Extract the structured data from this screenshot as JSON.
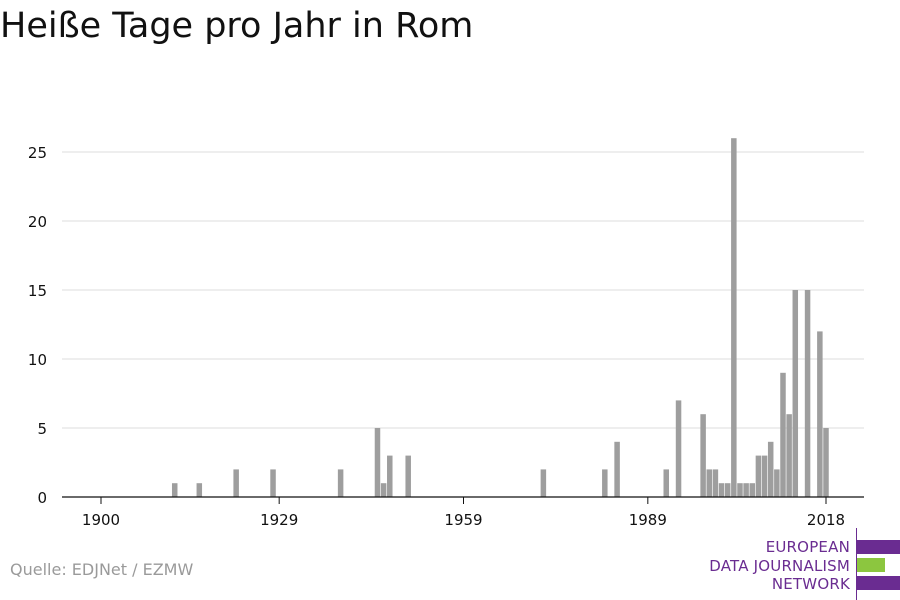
{
  "title": "Heiße Tage pro Jahr in Rom",
  "source": "Quelle: EDJNet / EZMW",
  "logo": {
    "lines": [
      "EUROPEAN",
      "DATA JOURNALISM",
      "NETWORK"
    ],
    "colors": {
      "purple": "#6a2c91",
      "green": "#8cc63f"
    }
  },
  "colors": {
    "bar": "#9e9e9e",
    "grid": "#dddddd",
    "axis": "#111111",
    "text": "#111111"
  },
  "chart_data": {
    "type": "bar",
    "title": "Heiße Tage pro Jahr in Rom",
    "xlabel": "",
    "ylabel": "",
    "xlim": [
      1899,
      2019
    ],
    "ylim": [
      0,
      26
    ],
    "xticks": [
      1900,
      1929,
      1959,
      1989,
      2018
    ],
    "yticks": [
      0,
      5,
      10,
      15,
      20,
      25
    ],
    "grid": true,
    "series": [
      {
        "x": [
          1912,
          1916,
          1922,
          1928,
          1939,
          1945,
          1946,
          1947,
          1950,
          1972,
          1982,
          1984,
          1992,
          1994,
          1998,
          1999,
          2000,
          2001,
          2002,
          2003,
          2004,
          2005,
          2006,
          2007,
          2008,
          2009,
          2010,
          2011,
          2012,
          2013,
          2015,
          2017,
          2018
        ],
        "values": [
          1,
          1,
          2,
          2,
          2,
          5,
          1,
          3,
          3,
          2,
          2,
          4,
          2,
          7,
          6,
          2,
          2,
          1,
          1,
          26,
          1,
          1,
          1,
          3,
          3,
          4,
          2,
          9,
          6,
          15,
          15,
          12,
          5
        ]
      }
    ]
  }
}
